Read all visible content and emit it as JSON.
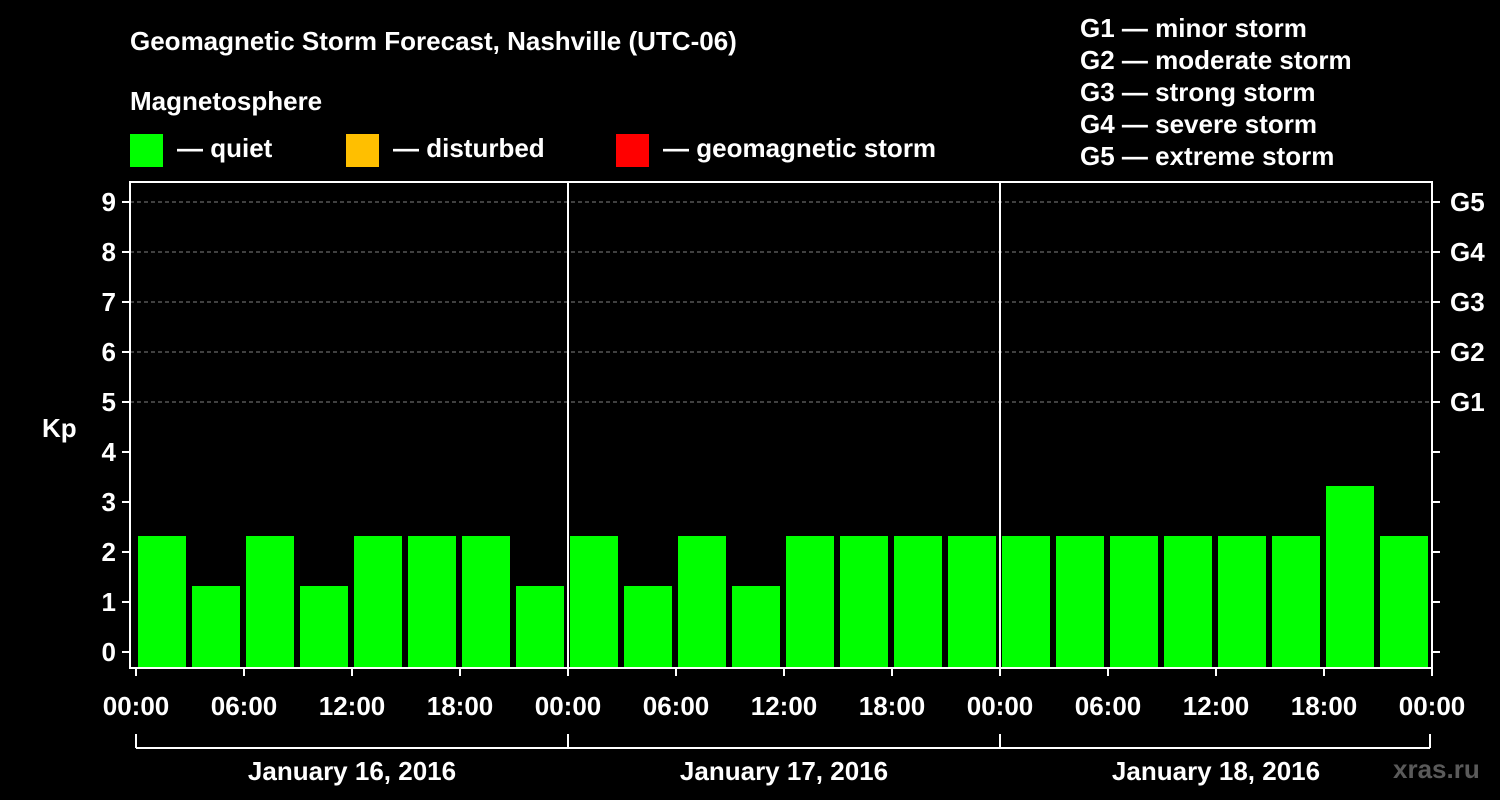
{
  "colors": {
    "quiet": "#00ff00",
    "disturbed": "#ffbf00",
    "storm": "#ff0000",
    "background": "#000000",
    "foreground": "#ffffff",
    "grid": "#808080",
    "watermark": "#5a5a5a"
  },
  "header": {
    "title": "Geomagnetic Storm Forecast, Nashville (UTC-06)",
    "subtitle": "Magnetosphere",
    "legend": [
      {
        "key": "quiet",
        "label": "— quiet"
      },
      {
        "key": "disturbed",
        "label": "— disturbed"
      },
      {
        "key": "storm",
        "label": "— geomagnetic storm"
      }
    ],
    "scale": [
      "G1 — minor storm",
      "G2 — moderate storm",
      "G3 — strong storm",
      "G4 — severe storm",
      "G5 — extreme storm"
    ]
  },
  "watermark": "xras.ru",
  "chart_data": {
    "type": "bar",
    "title": "Geomagnetic Storm Forecast, Nashville (UTC-06)",
    "ylabel": "Kp",
    "ylim": [
      0,
      9
    ],
    "yticks": [
      "0",
      "1",
      "2",
      "3",
      "4",
      "5",
      "6",
      "7",
      "8",
      "9"
    ],
    "gridlines": [
      5,
      6,
      7,
      8,
      9
    ],
    "right_labels": [
      {
        "kp": 5,
        "label": "G1"
      },
      {
        "kp": 6,
        "label": "G2"
      },
      {
        "kp": 7,
        "label": "G3"
      },
      {
        "kp": 8,
        "label": "G4"
      },
      {
        "kp": 9,
        "label": "G5"
      }
    ],
    "xtick_labels": [
      "00:00",
      "06:00",
      "12:00",
      "18:00",
      "00:00",
      "06:00",
      "12:00",
      "18:00",
      "00:00",
      "06:00",
      "12:00",
      "18:00",
      "00:00"
    ],
    "days": [
      "January 16, 2016",
      "January 17, 2016",
      "January 18, 2016"
    ],
    "interval_hours": 3,
    "series": [
      {
        "name": "Kp",
        "values": [
          2,
          1,
          2,
          1,
          2,
          2,
          2,
          1,
          2,
          1,
          2,
          1,
          2,
          2,
          2,
          2,
          2,
          2,
          2,
          2,
          2,
          2,
          3,
          2
        ],
        "status": [
          "quiet",
          "quiet",
          "quiet",
          "quiet",
          "quiet",
          "quiet",
          "quiet",
          "quiet",
          "quiet",
          "quiet",
          "quiet",
          "quiet",
          "quiet",
          "quiet",
          "quiet",
          "quiet",
          "quiet",
          "quiet",
          "quiet",
          "quiet",
          "quiet",
          "quiet",
          "quiet",
          "quiet"
        ]
      }
    ]
  }
}
